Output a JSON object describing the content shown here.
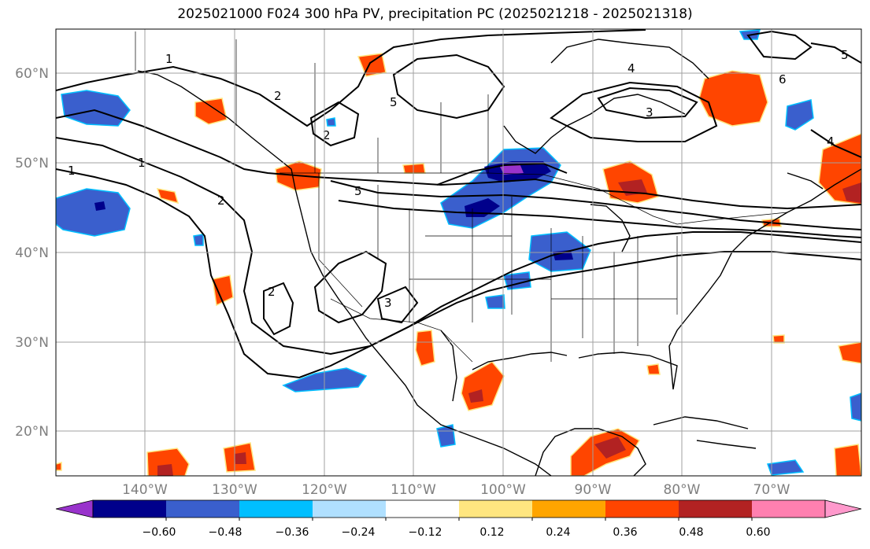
{
  "title": "2025021000 F024 300 hPa PV, precipitation PC (2025021218 - 2025021318)",
  "map": {
    "lon_range": [
      -150,
      -60
    ],
    "lat_range": [
      15,
      65
    ],
    "lat_labels": [
      "60°N",
      "50°N",
      "40°N",
      "30°N",
      "20°N"
    ],
    "lon_labels": [
      "140°W",
      "130°W",
      "120°W",
      "110°W",
      "100°W",
      "90°W",
      "80°W",
      "70°W"
    ],
    "gridlines": true,
    "contour_labels": [
      "1",
      "1",
      "1",
      "2",
      "2",
      "2",
      "2",
      "3",
      "3",
      "4",
      "4",
      "5",
      "5",
      "5",
      "6"
    ]
  },
  "colorbar": {
    "ticks": [
      "−0.60",
      "−0.48",
      "−0.36",
      "−0.24",
      "−0.12",
      "0.12",
      "0.24",
      "0.36",
      "0.48",
      "0.60"
    ],
    "colors": [
      "#9933cc",
      "#00008b",
      "#3a5fcd",
      "#00bfff",
      "#b0e0ff",
      "#ffffff",
      "#ffe680",
      "#ffa500",
      "#ff4500",
      "#b22222",
      "#ff80b0",
      "#ff99cc"
    ]
  }
}
